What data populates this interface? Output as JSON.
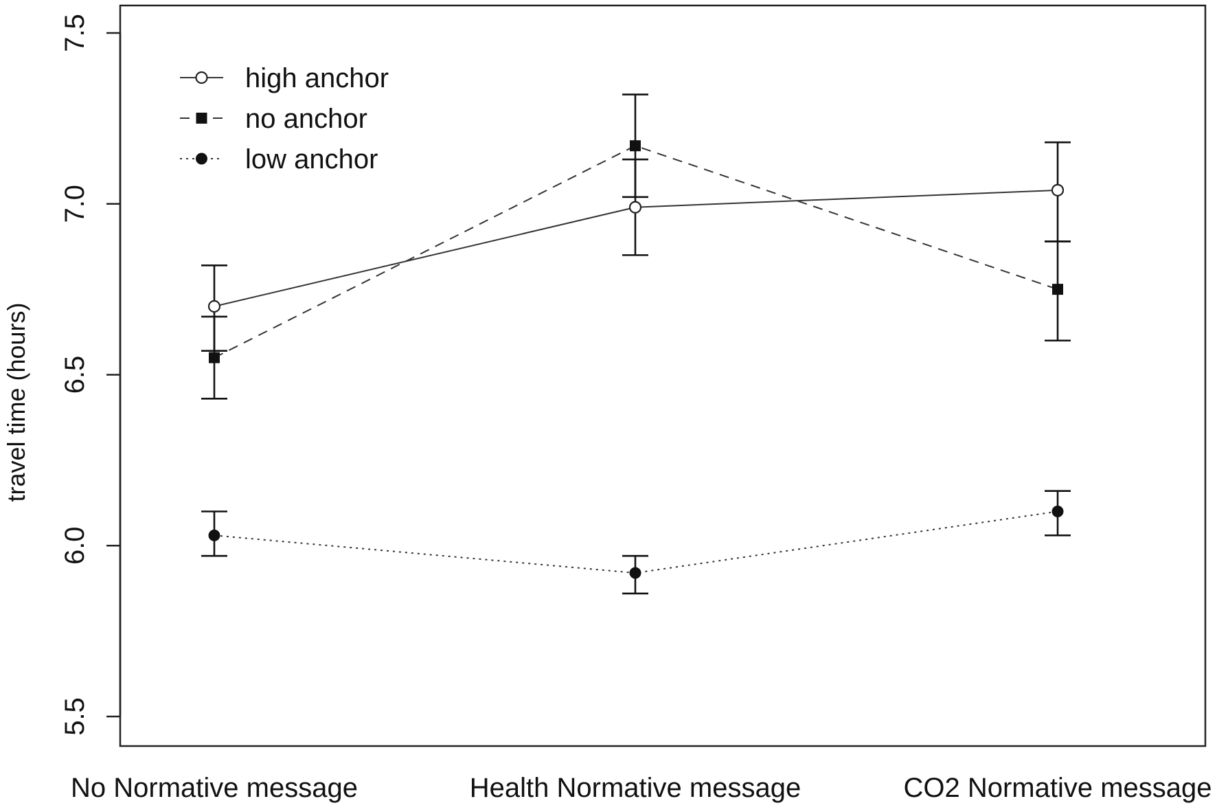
{
  "chart_data": {
    "type": "line",
    "title": "",
    "xlabel": "",
    "ylabel": "travel time (hours)",
    "categories": [
      "No Normative message",
      "Health Normative message",
      "CO2 Normative message"
    ],
    "ylim": [
      5.5,
      7.5
    ],
    "yticks": [
      "5.5",
      "6.0",
      "6.5",
      "7.0",
      "7.5"
    ],
    "grid": false,
    "legend_position": "top-left",
    "series": [
      {
        "name": "high anchor",
        "line_style": "solid",
        "marker": "open-circle",
        "values": [
          6.7,
          6.99,
          7.04
        ],
        "err_low": [
          6.57,
          6.85,
          6.89
        ],
        "err_high": [
          6.82,
          7.13,
          7.18
        ]
      },
      {
        "name": "no anchor",
        "line_style": "dashed",
        "marker": "filled-square",
        "values": [
          6.55,
          7.17,
          6.75
        ],
        "err_low": [
          6.43,
          7.02,
          6.6
        ],
        "err_high": [
          6.67,
          7.32,
          6.89
        ]
      },
      {
        "name": "low anchor",
        "line_style": "dotted",
        "marker": "filled-circle",
        "values": [
          6.03,
          5.92,
          6.1
        ],
        "err_low": [
          5.97,
          5.86,
          6.03
        ],
        "err_high": [
          6.1,
          5.97,
          6.16
        ]
      }
    ]
  }
}
